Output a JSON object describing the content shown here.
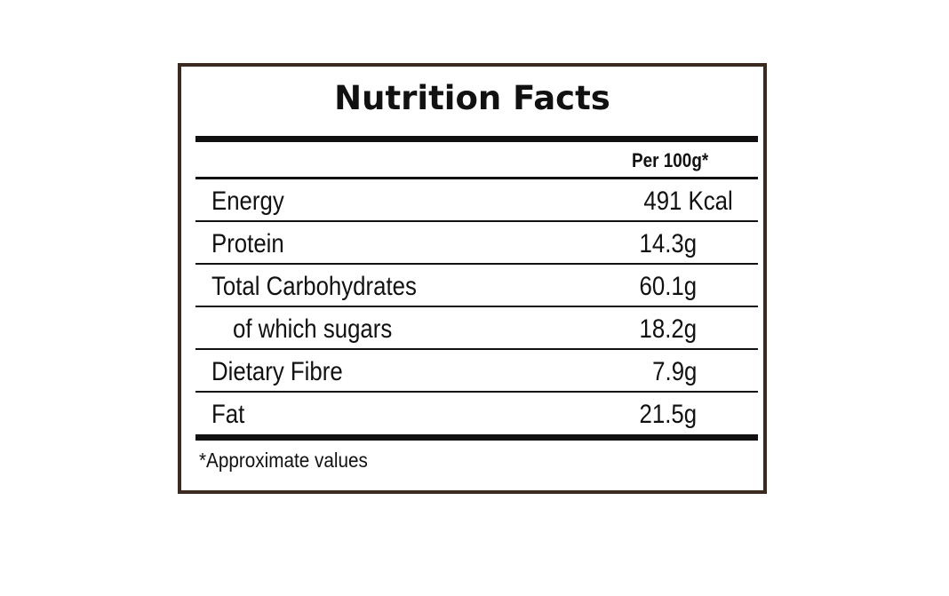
{
  "title": "Nutrition Facts",
  "column_header": "Per 100g*",
  "rows": [
    {
      "label": "Energy",
      "value": "491 Kcal"
    },
    {
      "label": "Protein",
      "value": "14.3g"
    },
    {
      "label": "Total Carbohydrates",
      "value": "60.1g"
    },
    {
      "label": "of which sugars",
      "value": "18.2g"
    },
    {
      "label": "Dietary Fibre",
      "value": "7.9g"
    },
    {
      "label": "Fat",
      "value": "21.5g"
    }
  ],
  "footnote": "*Approximate values",
  "colors": {
    "frame": "#3a2a1f",
    "text": "#111111",
    "background": "#ffffff"
  }
}
